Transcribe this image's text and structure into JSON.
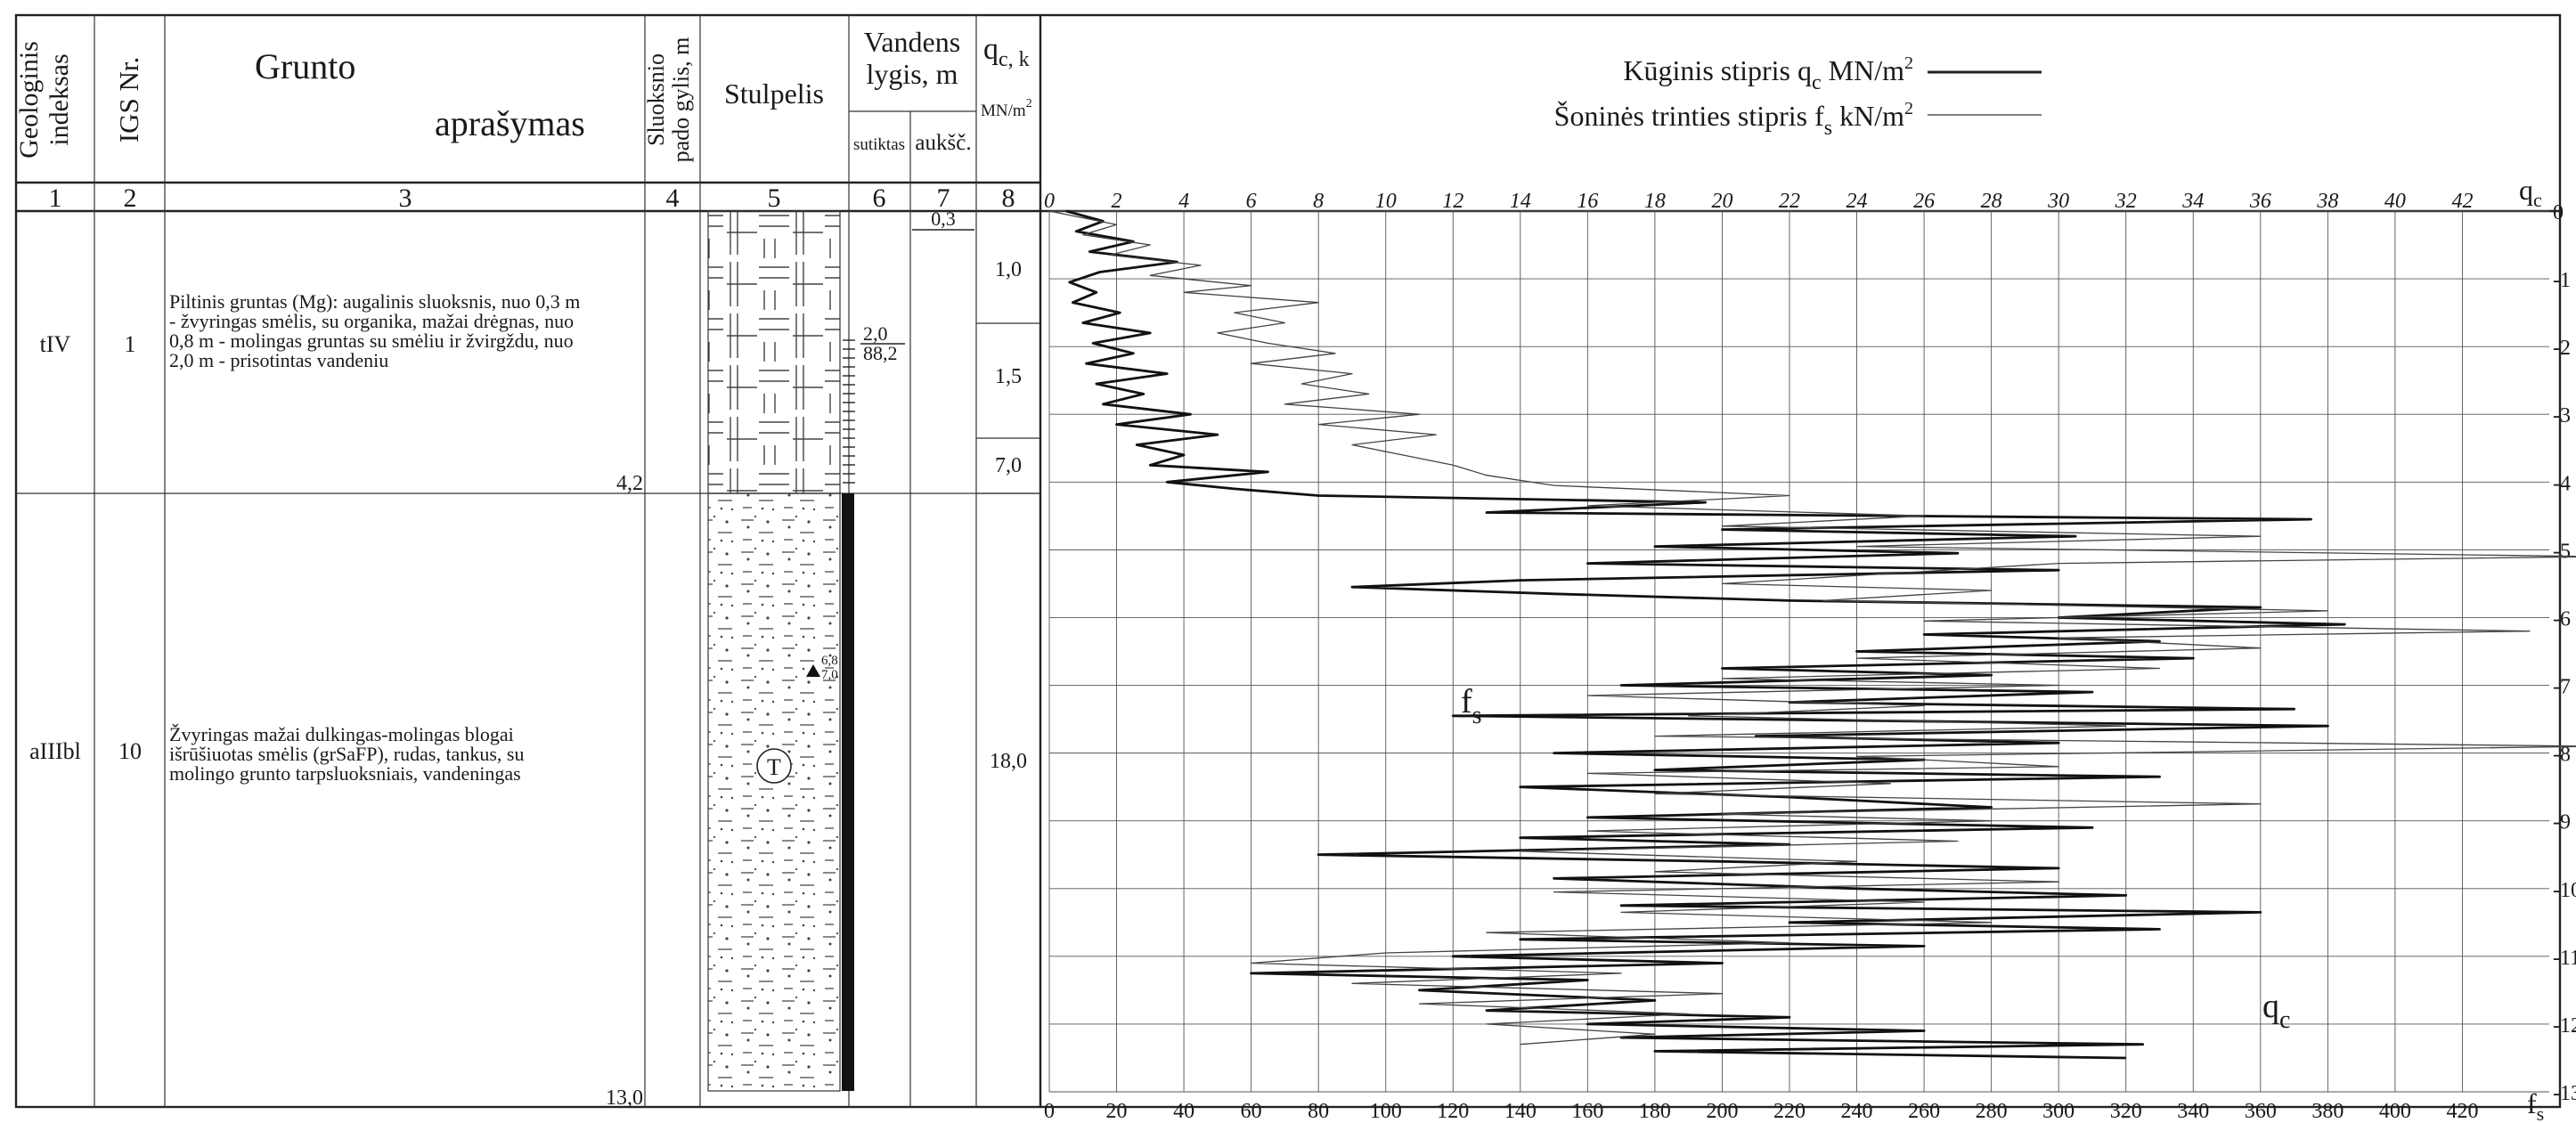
{
  "header": {
    "col1": [
      "Geologinis",
      "indeksas"
    ],
    "col2": "IGS Nr.",
    "col3": [
      "Grunto",
      "aprašymas"
    ],
    "col4": [
      "Sluoksnio",
      "pado gylis, m"
    ],
    "col5": "Stulpelis",
    "col67": [
      "Vandens",
      "lygis, m"
    ],
    "col6_sub": "sutiktas",
    "col7_sub": "aukšč.",
    "col8": "q",
    "col8_sub": "c, k",
    "col8_unit": "MN/m",
    "col8_sup": "2",
    "legend_qc_a": "Kūginis stipris  q",
    "legend_qc_sub": "c",
    "legend_qc_b": " MN/m",
    "legend_qc_sup": "2",
    "legend_fs_a": "Šoninės trinties stipris  f",
    "legend_fs_sub": "s",
    "legend_fs_b": " kN/m",
    "legend_fs_sup": "2",
    "numbers": [
      "1",
      "2",
      "3",
      "4",
      "5",
      "6",
      "7",
      "8"
    ]
  },
  "layers": [
    {
      "index": "tIV",
      "igs": "1",
      "description": [
        "Piltinis gruntas (Mg): augalinis sluoksnis, nuo 0,3 m",
        "- žvyringas smėlis, su organika, mažai drėgnas, nuo",
        "0,8 m - molingas gruntas su smėliu ir žvirgždu, nuo",
        "2,0 m - prisotintas vandeniu"
      ],
      "depth": "4,2"
    },
    {
      "index": "aIIIbl",
      "igs": "10",
      "description": [
        "Žvyringas mažai dulkingas-molingas blogai",
        "išrūšiuotas smėlis (grSaFP), rudas, tankus, su",
        "molingo grunto tarpsluoksniais, vandeningas"
      ],
      "depth": "13,0"
    }
  ],
  "column_marks": {
    "sample_depth_top": "6,8",
    "sample_depth_bottom": "7,0",
    "sample_symbol": "T"
  },
  "water": {
    "met_depth": "2,0",
    "met_elevation": "88,2",
    "level_top": "0,3"
  },
  "qck_values": [
    "1,0",
    "1,5",
    "7,0",
    "18,0"
  ],
  "chart_data": {
    "type": "line",
    "orientation": "depth-profile",
    "qc_axis": {
      "label": "q",
      "label_sub": "c",
      "ticks": [
        "0",
        "2",
        "4",
        "6",
        "8",
        "10",
        "12",
        "14",
        "16",
        "18",
        "20",
        "22",
        "24",
        "26",
        "28",
        "30",
        "32",
        "34",
        "36",
        "38",
        "40",
        "42"
      ],
      "range": [
        0,
        44
      ],
      "unit": "MN/m2"
    },
    "fs_axis": {
      "label": "f",
      "label_sub": "s",
      "ticks": [
        "0",
        "20",
        "40",
        "60",
        "80",
        "100",
        "120",
        "140",
        "160",
        "180",
        "200",
        "220",
        "240",
        "260",
        "280",
        "300",
        "320",
        "340",
        "360",
        "380",
        "400",
        "420"
      ],
      "range": [
        0,
        440
      ],
      "unit": "kN/m2"
    },
    "depth_axis": {
      "ticks": [
        "0",
        "-1",
        "-2",
        "-3",
        "-4",
        "-5",
        "-6",
        "-7",
        "-8",
        "-9",
        "-10",
        "-11",
        "-12",
        "-13"
      ],
      "range": [
        0,
        -13
      ]
    },
    "curve_labels": {
      "qc": "q",
      "qc_sub": "c",
      "fs": "f",
      "fs_sub": "s"
    },
    "series": [
      {
        "name": "qc",
        "x_units": "MN/m2",
        "points": [
          [
            0.5,
            0
          ],
          [
            1.6,
            -0.15
          ],
          [
            0.8,
            -0.3
          ],
          [
            2.5,
            -0.45
          ],
          [
            1.2,
            -0.6
          ],
          [
            3.8,
            -0.75
          ],
          [
            1.5,
            -0.9
          ],
          [
            0.6,
            -1.05
          ],
          [
            1.4,
            -1.2
          ],
          [
            0.7,
            -1.35
          ],
          [
            2.1,
            -1.5
          ],
          [
            1.0,
            -1.65
          ],
          [
            3.0,
            -1.8
          ],
          [
            1.3,
            -1.95
          ],
          [
            2.5,
            -2.1
          ],
          [
            1.1,
            -2.25
          ],
          [
            3.5,
            -2.4
          ],
          [
            1.4,
            -2.55
          ],
          [
            2.8,
            -2.7
          ],
          [
            1.6,
            -2.85
          ],
          [
            4.2,
            -3.0
          ],
          [
            2.0,
            -3.15
          ],
          [
            5.0,
            -3.3
          ],
          [
            2.6,
            -3.45
          ],
          [
            4.0,
            -3.6
          ],
          [
            3.0,
            -3.75
          ],
          [
            6.5,
            -3.85
          ],
          [
            3.5,
            -4.0
          ],
          [
            5.5,
            -4.1
          ],
          [
            8.0,
            -4.2
          ],
          [
            19.5,
            -4.3
          ],
          [
            13.0,
            -4.45
          ],
          [
            37.5,
            -4.55
          ],
          [
            20.0,
            -4.7
          ],
          [
            30.5,
            -4.8
          ],
          [
            18.0,
            -4.95
          ],
          [
            27.0,
            -5.05
          ],
          [
            16.0,
            -5.2
          ],
          [
            30.0,
            -5.3
          ],
          [
            14.0,
            -5.45
          ],
          [
            9.0,
            -5.55
          ],
          [
            15.0,
            -5.65
          ],
          [
            22.0,
            -5.75
          ],
          [
            36.0,
            -5.85
          ],
          [
            30.0,
            -6.0
          ],
          [
            38.5,
            -6.1
          ],
          [
            26.0,
            -6.25
          ],
          [
            33.0,
            -6.35
          ],
          [
            24.0,
            -6.5
          ],
          [
            34.0,
            -6.6
          ],
          [
            20.0,
            -6.75
          ],
          [
            28.0,
            -6.85
          ],
          [
            17.0,
            -7.0
          ],
          [
            31.0,
            -7.1
          ],
          [
            22.0,
            -7.25
          ],
          [
            37.0,
            -7.35
          ],
          [
            12.0,
            -7.45
          ],
          [
            38.0,
            -7.6
          ],
          [
            21.0,
            -7.75
          ],
          [
            30.0,
            -7.85
          ],
          [
            15.0,
            -8.0
          ],
          [
            26.0,
            -8.1
          ],
          [
            18.0,
            -8.25
          ],
          [
            33.0,
            -8.35
          ],
          [
            14.0,
            -8.5
          ],
          [
            22.0,
            -8.65
          ],
          [
            28.0,
            -8.8
          ],
          [
            16.0,
            -8.95
          ],
          [
            31.0,
            -9.1
          ],
          [
            14.0,
            -9.25
          ],
          [
            22.0,
            -9.35
          ],
          [
            8.0,
            -9.5
          ],
          [
            20.0,
            -9.6
          ],
          [
            30.0,
            -9.7
          ],
          [
            15.0,
            -9.85
          ],
          [
            24.0,
            -10.0
          ],
          [
            32.0,
            -10.1
          ],
          [
            17.0,
            -10.25
          ],
          [
            36.0,
            -10.35
          ],
          [
            22.0,
            -10.5
          ],
          [
            33.0,
            -10.6
          ],
          [
            14.0,
            -10.75
          ],
          [
            26.0,
            -10.85
          ],
          [
            12.0,
            -11.0
          ],
          [
            20.0,
            -11.1
          ],
          [
            6.0,
            -11.25
          ],
          [
            16.0,
            -11.35
          ],
          [
            11.0,
            -11.5
          ],
          [
            18.0,
            -11.65
          ],
          [
            13.0,
            -11.8
          ],
          [
            22.0,
            -11.9
          ],
          [
            16.0,
            -12.0
          ],
          [
            26.0,
            -12.1
          ],
          [
            17.0,
            -12.2
          ],
          [
            32.5,
            -12.3
          ],
          [
            18.0,
            -12.4
          ],
          [
            32.0,
            -12.5
          ]
        ]
      },
      {
        "name": "fs",
        "x_units": "kN/m2",
        "points": [
          [
            0,
            0
          ],
          [
            20,
            -0.2
          ],
          [
            10,
            -0.35
          ],
          [
            30,
            -0.5
          ],
          [
            18,
            -0.65
          ],
          [
            45,
            -0.8
          ],
          [
            30,
            -0.95
          ],
          [
            60,
            -1.1
          ],
          [
            40,
            -1.2
          ],
          [
            80,
            -1.35
          ],
          [
            55,
            -1.5
          ],
          [
            70,
            -1.65
          ],
          [
            50,
            -1.8
          ],
          [
            65,
            -1.95
          ],
          [
            85,
            -2.1
          ],
          [
            60,
            -2.25
          ],
          [
            90,
            -2.4
          ],
          [
            75,
            -2.55
          ],
          [
            95,
            -2.7
          ],
          [
            70,
            -2.85
          ],
          [
            110,
            -3.0
          ],
          [
            80,
            -3.15
          ],
          [
            115,
            -3.3
          ],
          [
            90,
            -3.45
          ],
          [
            105,
            -3.6
          ],
          [
            120,
            -3.75
          ],
          [
            130,
            -3.9
          ],
          [
            150,
            -4.05
          ],
          [
            220,
            -4.2
          ],
          [
            160,
            -4.35
          ],
          [
            260,
            -4.5
          ],
          [
            200,
            -4.65
          ],
          [
            360,
            -4.8
          ],
          [
            240,
            -4.95
          ],
          [
            460,
            -5.1
          ],
          [
            300,
            -5.2
          ],
          [
            250,
            -5.35
          ],
          [
            200,
            -5.5
          ],
          [
            280,
            -5.6
          ],
          [
            230,
            -5.75
          ],
          [
            380,
            -5.9
          ],
          [
            260,
            -6.05
          ],
          [
            440,
            -6.2
          ],
          [
            300,
            -6.3
          ],
          [
            360,
            -6.45
          ],
          [
            240,
            -6.6
          ],
          [
            330,
            -6.75
          ],
          [
            200,
            -6.9
          ],
          [
            300,
            -7.0
          ],
          [
            160,
            -7.15
          ],
          [
            260,
            -7.3
          ],
          [
            190,
            -7.45
          ],
          [
            320,
            -7.6
          ],
          [
            180,
            -7.75
          ],
          [
            460,
            -7.9
          ],
          [
            240,
            -8.05
          ],
          [
            300,
            -8.2
          ],
          [
            160,
            -8.3
          ],
          [
            250,
            -8.45
          ],
          [
            180,
            -8.6
          ],
          [
            360,
            -8.75
          ],
          [
            200,
            -8.9
          ],
          [
            280,
            -9.0
          ],
          [
            160,
            -9.15
          ],
          [
            270,
            -9.3
          ],
          [
            140,
            -9.45
          ],
          [
            240,
            -9.6
          ],
          [
            180,
            -9.75
          ],
          [
            300,
            -9.9
          ],
          [
            150,
            -10.05
          ],
          [
            260,
            -10.2
          ],
          [
            170,
            -10.35
          ],
          [
            280,
            -10.5
          ],
          [
            130,
            -10.65
          ],
          [
            220,
            -10.8
          ],
          [
            100,
            -10.95
          ],
          [
            60,
            -11.1
          ],
          [
            170,
            -11.25
          ],
          [
            90,
            -11.4
          ],
          [
            200,
            -11.55
          ],
          [
            110,
            -11.7
          ],
          [
            190,
            -11.85
          ],
          [
            130,
            -12.0
          ],
          [
            180,
            -12.15
          ],
          [
            140,
            -12.3
          ]
        ]
      }
    ]
  }
}
